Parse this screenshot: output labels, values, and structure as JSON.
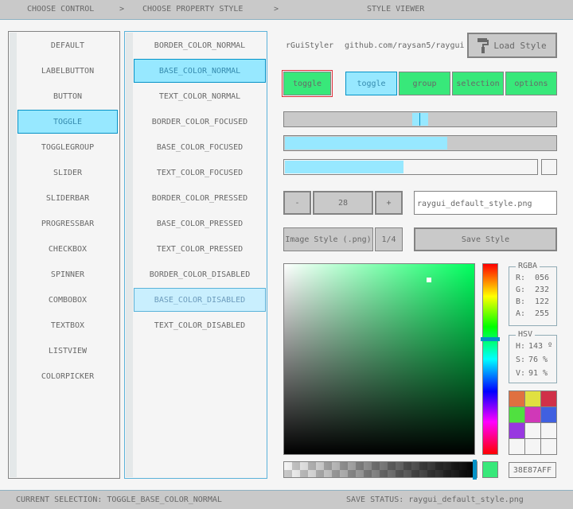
{
  "header": {
    "step1": "CHOOSE CONTROL",
    "sep": ">",
    "step2": "CHOOSE PROPERTY STYLE",
    "step3": "STYLE VIEWER"
  },
  "controls": [
    "DEFAULT",
    "LABELBUTTON",
    "BUTTON",
    "TOGGLE",
    "TOGGLEGROUP",
    "SLIDER",
    "SLIDERBAR",
    "PROGRESSBAR",
    "CHECKBOX",
    "SPINNER",
    "COMBOBOX",
    "TEXTBOX",
    "LISTVIEW",
    "COLORPICKER"
  ],
  "controls_selected": "TOGGLE",
  "properties": [
    "BORDER_COLOR_NORMAL",
    "BASE_COLOR_NORMAL",
    "TEXT_COLOR_NORMAL",
    "BORDER_COLOR_FOCUSED",
    "BASE_COLOR_FOCUSED",
    "TEXT_COLOR_FOCUSED",
    "BORDER_COLOR_PRESSED",
    "BASE_COLOR_PRESSED",
    "TEXT_COLOR_PRESSED",
    "BORDER_COLOR_DISABLED",
    "BASE_COLOR_DISABLED",
    "TEXT_COLOR_DISABLED"
  ],
  "properties_selected": "BASE_COLOR_NORMAL",
  "properties_hovered": "BASE_COLOR_DISABLED",
  "viewer": {
    "app_name": "rGuiStyler",
    "url": "github.com/raysan5/raygui",
    "load_style": "Load Style",
    "toggle": "toggle",
    "group": [
      "toggle",
      "group",
      "selection",
      "options"
    ],
    "slider_value": 0.5,
    "sliderbar_value": 0.6,
    "progress_value": 0.47,
    "checkbox_checked": false,
    "spinner": {
      "minus": "-",
      "value": "28",
      "plus": "+"
    },
    "filename": "raygui_default_style.png",
    "image_style": "Image Style (.png)",
    "page": "1/4",
    "save_style": "Save Style",
    "rgba": {
      "title": "RGBA",
      "labels": [
        "R:",
        "G:",
        "B:",
        "A:"
      ],
      "values": [
        "056",
        "232",
        "122",
        "255"
      ]
    },
    "hsv": {
      "title": "HSV",
      "labels": [
        "H:",
        "S:",
        "V:"
      ],
      "values": [
        "143 º",
        "76 %",
        "91 %"
      ]
    },
    "hex": "38E87AFF",
    "palette": [
      "#e07040",
      "#e0e040",
      "#d03048",
      "#50e040",
      "#d038b8",
      "#4060e0",
      "#9838e0",
      "#f5f5f5",
      "#f5f5f5",
      "#f5f5f5",
      "#f5f5f5",
      "#f5f5f5"
    ]
  },
  "status": {
    "selection": "CURRENT SELECTION: TOGGLE_BASE_COLOR_NORMAL",
    "save": "SAVE STATUS: raygui_default_style.png"
  },
  "colors": {
    "accent": "#97e8ff",
    "accent_border": "#0492c7",
    "selected_color": "#38e87a",
    "base": "#c9c9c9",
    "border": "#838383"
  }
}
